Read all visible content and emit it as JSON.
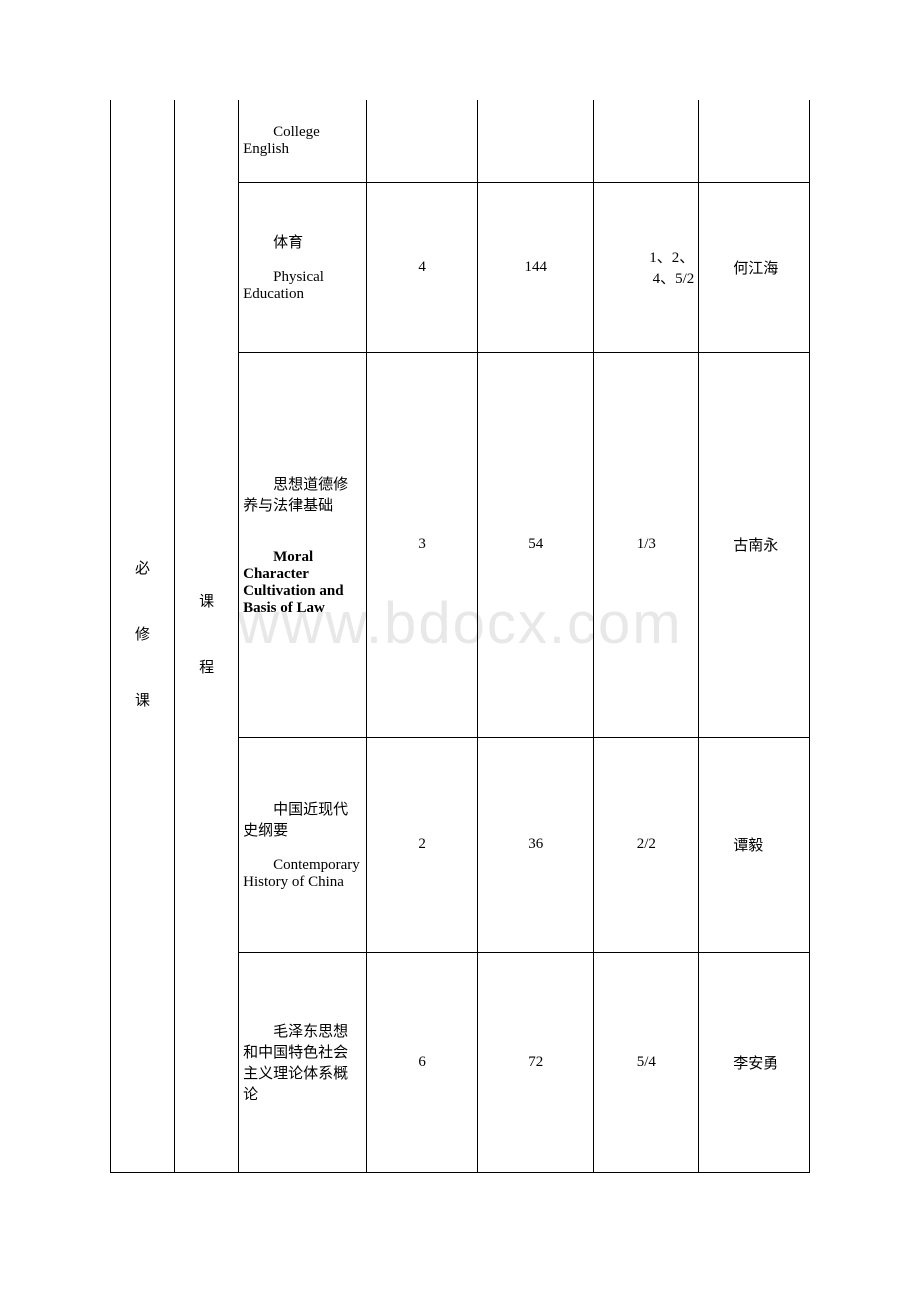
{
  "watermark": "www.bdocx.com",
  "header_col1": "必修课",
  "header_col2": "课程",
  "rows": [
    {
      "course_cn": "",
      "course_en": "College English",
      "credits": "",
      "hours": "",
      "semester": "",
      "instructor": "",
      "semester_class": "semester-cell"
    },
    {
      "course_cn": "体育",
      "course_en": "Physical Education",
      "credits": "4",
      "hours": "144",
      "semester": "1、2、4、5/2",
      "instructor": "何江海",
      "semester_class": "semester-cell"
    },
    {
      "course_cn": "思想道德修养与法律基础",
      "course_en": "Moral Character Cultivation and Basis of Law",
      "en_bold": true,
      "credits": "3",
      "hours": "54",
      "semester": "1/3",
      "instructor": "古南永",
      "semester_class": "semester-cell-center"
    },
    {
      "course_cn": "中国近现代史纲要",
      "course_en": "Contemporary History of China",
      "credits": "2",
      "hours": "36",
      "semester": "2/2",
      "instructor": "谭毅",
      "semester_class": "semester-cell-center"
    },
    {
      "course_cn": "毛泽东思想和中国特色社会主义理论体系概论",
      "course_en": "",
      "credits": "6",
      "hours": "72",
      "semester": "5/4",
      "instructor": "李安勇",
      "semester_class": "semester-cell-center"
    }
  ],
  "table_style": {
    "border_color": "#000000",
    "background_color": "#ffffff",
    "text_color": "#000000",
    "watermark_color": "#e8e8e8",
    "font_size": 15
  }
}
